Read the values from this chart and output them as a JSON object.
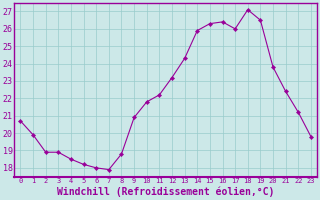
{
  "x": [
    0,
    1,
    2,
    3,
    4,
    5,
    6,
    7,
    8,
    9,
    10,
    11,
    12,
    13,
    14,
    15,
    16,
    17,
    18,
    19,
    20,
    21,
    22,
    23
  ],
  "y": [
    20.7,
    19.9,
    18.9,
    18.9,
    18.5,
    18.2,
    18.0,
    17.9,
    18.8,
    20.9,
    21.8,
    22.2,
    23.2,
    24.3,
    25.9,
    26.3,
    26.4,
    26.0,
    27.1,
    26.5,
    23.8,
    22.4,
    21.2,
    19.8
  ],
  "line_color": "#990099",
  "marker": "D",
  "marker_size": 2.2,
  "bg_color": "#cce8e8",
  "grid_color": "#99cccc",
  "xlabel": "Windchill (Refroidissement éolien,°C)",
  "xlabel_color": "#990099",
  "xlabel_fontsize": 7,
  "ylim": [
    17.5,
    27.5
  ],
  "yticks": [
    18,
    19,
    20,
    21,
    22,
    23,
    24,
    25,
    26,
    27
  ],
  "xticks": [
    0,
    1,
    2,
    3,
    4,
    5,
    6,
    7,
    8,
    9,
    10,
    11,
    12,
    13,
    14,
    15,
    16,
    17,
    18,
    19,
    20,
    21,
    22,
    23
  ],
  "tick_color": "#990099",
  "ytick_fontsize": 6,
  "xtick_fontsize": 5,
  "spine_color": "#990099",
  "xlim": [
    -0.5,
    23.5
  ]
}
